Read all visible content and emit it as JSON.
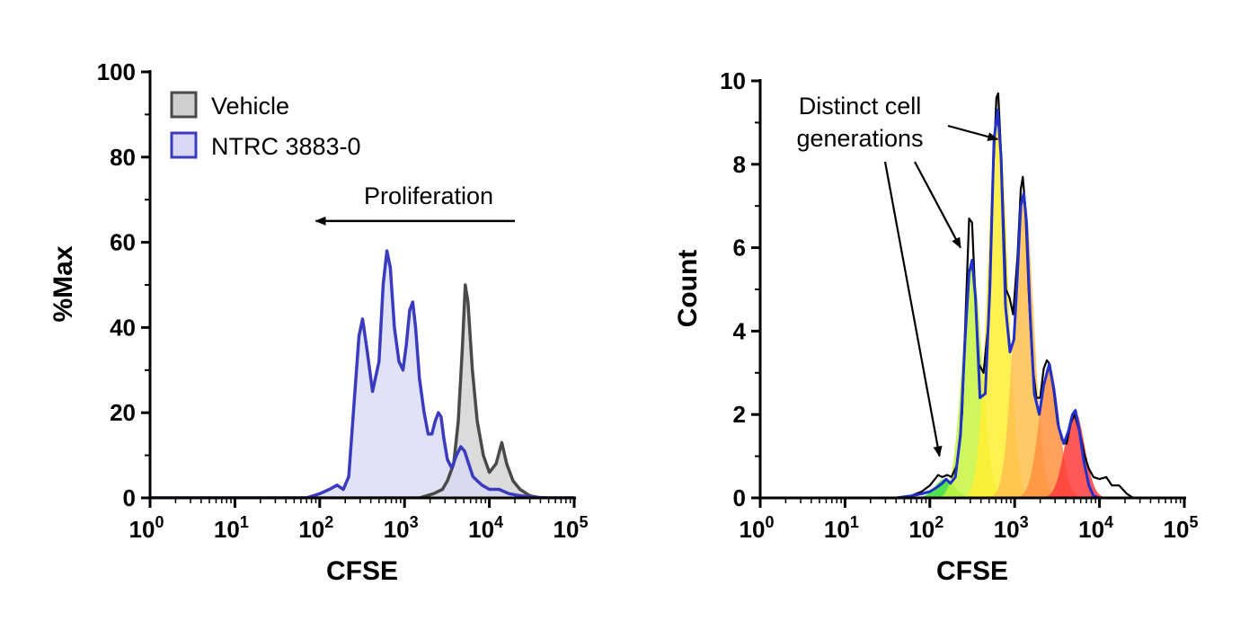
{
  "chart_data": [
    {
      "type": "area",
      "xscale": "log",
      "xlim": [
        1,
        100000
      ],
      "ylim": [
        0,
        100
      ],
      "xlabel": "CFSE",
      "ylabel": "%Max",
      "xticks": [
        {
          "base": "10",
          "exp": "0",
          "value": 1
        },
        {
          "base": "10",
          "exp": "1",
          "value": 10
        },
        {
          "base": "10",
          "exp": "2",
          "value": 100
        },
        {
          "base": "10",
          "exp": "3",
          "value": 1000
        },
        {
          "base": "10",
          "exp": "4",
          "value": 10000
        },
        {
          "base": "10",
          "exp": "5",
          "value": 100000
        }
      ],
      "yticks": [
        0,
        20,
        40,
        60,
        80,
        100
      ],
      "legend_position": "top-left",
      "annotation": {
        "text": "Proliferation",
        "arrow_from": 20000,
        "arrow_to": 90,
        "y": 65
      },
      "series": [
        {
          "name": "Vehicle",
          "stroke": "#4a4a4a",
          "fill": "#cfcfcf",
          "points": [
            [
              1,
              0
            ],
            [
              100,
              0
            ],
            [
              1500,
              0
            ],
            [
              2200,
              1
            ],
            [
              2800,
              2
            ],
            [
              3200,
              4
            ],
            [
              3800,
              8
            ],
            [
              4300,
              18
            ],
            [
              4800,
              35
            ],
            [
              5200,
              50
            ],
            [
              5600,
              46
            ],
            [
              6300,
              30
            ],
            [
              7200,
              18
            ],
            [
              8500,
              10
            ],
            [
              10000,
              6
            ],
            [
              12000,
              8
            ],
            [
              14000,
              13
            ],
            [
              16000,
              8
            ],
            [
              19000,
              4
            ],
            [
              23000,
              2
            ],
            [
              30000,
              0.5
            ],
            [
              40000,
              0
            ],
            [
              100000,
              0
            ]
          ]
        },
        {
          "name": "NTRC 3883-0",
          "stroke": "#3b3bbf",
          "fill": "#d8d8f4",
          "points": [
            [
              1,
              0
            ],
            [
              70,
              0
            ],
            [
              100,
              1
            ],
            [
              130,
              2
            ],
            [
              160,
              3
            ],
            [
              190,
              2
            ],
            [
              220,
              5
            ],
            [
              260,
              25
            ],
            [
              290,
              38
            ],
            [
              320,
              42
            ],
            [
              360,
              35
            ],
            [
              420,
              25
            ],
            [
              500,
              32
            ],
            [
              560,
              50
            ],
            [
              620,
              58
            ],
            [
              680,
              54
            ],
            [
              760,
              40
            ],
            [
              860,
              32
            ],
            [
              960,
              30
            ],
            [
              1050,
              36
            ],
            [
              1150,
              44
            ],
            [
              1250,
              46
            ],
            [
              1350,
              40
            ],
            [
              1500,
              28
            ],
            [
              1700,
              20
            ],
            [
              1900,
              15
            ],
            [
              2100,
              15
            ],
            [
              2300,
              18
            ],
            [
              2500,
              20
            ],
            [
              2700,
              19
            ],
            [
              2900,
              14
            ],
            [
              3200,
              9
            ],
            [
              3600,
              7
            ],
            [
              4100,
              10
            ],
            [
              4600,
              12
            ],
            [
              5100,
              11
            ],
            [
              5700,
              8
            ],
            [
              6400,
              5
            ],
            [
              7200,
              4
            ],
            [
              8200,
              3
            ],
            [
              10000,
              2
            ],
            [
              13000,
              2
            ],
            [
              17000,
              1
            ],
            [
              22000,
              0.6
            ],
            [
              30000,
              0.2
            ],
            [
              50000,
              0
            ],
            [
              100000,
              0
            ]
          ]
        }
      ]
    },
    {
      "type": "area",
      "xscale": "log",
      "xlim": [
        1,
        100000
      ],
      "ylim": [
        0,
        10
      ],
      "xlabel": "CFSE",
      "ylabel": "Count",
      "xticks": [
        {
          "base": "10",
          "exp": "0",
          "value": 1
        },
        {
          "base": "10",
          "exp": "1",
          "value": 10
        },
        {
          "base": "10",
          "exp": "2",
          "value": 100
        },
        {
          "base": "10",
          "exp": "3",
          "value": 1000
        },
        {
          "base": "10",
          "exp": "4",
          "value": 10000
        },
        {
          "base": "10",
          "exp": "5",
          "value": 100000
        }
      ],
      "yticks": [
        0,
        2,
        4,
        6,
        8,
        10
      ],
      "annotation": {
        "lines": [
          "Distinct cell",
          "generations"
        ],
        "arrow_targets": [
          [
            130,
            1.0
          ],
          [
            230,
            6.0
          ],
          [
            630,
            8.6
          ]
        ]
      },
      "generations": [
        {
          "center": 150,
          "height": 0.45,
          "color": "#33dd33"
        },
        {
          "center": 315,
          "height": 5.6,
          "color": "#c8f542"
        },
        {
          "center": 630,
          "height": 9.3,
          "color": "#ffee33"
        },
        {
          "center": 1280,
          "height": 7.3,
          "color": "#ffc04d"
        },
        {
          "center": 2550,
          "height": 3.2,
          "color": "#ff9040"
        },
        {
          "center": 5100,
          "height": 2.1,
          "color": "#ff3b3b"
        }
      ],
      "series": [
        {
          "stroke": "#000000",
          "points": [
            [
              1,
              0
            ],
            [
              40,
              0
            ],
            [
              60,
              0.05
            ],
            [
              80,
              0.15
            ],
            [
              100,
              0.3
            ],
            [
              115,
              0.45
            ],
            [
              125,
              0.55
            ],
            [
              140,
              0.5
            ],
            [
              160,
              0.55
            ],
            [
              180,
              0.5
            ],
            [
              210,
              0.8
            ],
            [
              240,
              2.0
            ],
            [
              265,
              4.5
            ],
            [
              290,
              6.7
            ],
            [
              315,
              6.6
            ],
            [
              340,
              5.0
            ],
            [
              380,
              3.2
            ],
            [
              430,
              3.0
            ],
            [
              490,
              4.2
            ],
            [
              550,
              7.5
            ],
            [
              610,
              9.6
            ],
            [
              640,
              9.7
            ],
            [
              700,
              8.0
            ],
            [
              790,
              5.0
            ],
            [
              870,
              4.8
            ],
            [
              960,
              4.4
            ],
            [
              1080,
              5.8
            ],
            [
              1180,
              7.4
            ],
            [
              1250,
              7.7
            ],
            [
              1330,
              7.0
            ],
            [
              1460,
              5.0
            ],
            [
              1620,
              3.2
            ],
            [
              1800,
              2.4
            ],
            [
              2000,
              2.4
            ],
            [
              2200,
              3.1
            ],
            [
              2400,
              3.3
            ],
            [
              2600,
              3.2
            ],
            [
              2900,
              2.5
            ],
            [
              3200,
              1.8
            ],
            [
              3600,
              1.4
            ],
            [
              4100,
              1.3
            ],
            [
              4600,
              1.8
            ],
            [
              5100,
              2.0
            ],
            [
              5600,
              1.7
            ],
            [
              6100,
              1.4
            ],
            [
              6700,
              1.0
            ],
            [
              7500,
              0.7
            ],
            [
              8500,
              0.5
            ],
            [
              10000,
              0.45
            ],
            [
              12000,
              0.5
            ],
            [
              14000,
              0.3
            ],
            [
              17000,
              0.3
            ],
            [
              21000,
              0.1
            ],
            [
              25000,
              0
            ],
            [
              100000,
              0
            ]
          ]
        },
        {
          "stroke": "#2030c8",
          "points": [
            [
              1,
              0
            ],
            [
              40,
              0
            ],
            [
              60,
              0.05
            ],
            [
              80,
              0.1
            ],
            [
              100,
              0.15
            ],
            [
              120,
              0.25
            ],
            [
              140,
              0.35
            ],
            [
              155,
              0.45
            ],
            [
              175,
              0.35
            ],
            [
              200,
              0.5
            ],
            [
              230,
              1.5
            ],
            [
              260,
              3.8
            ],
            [
              290,
              5.4
            ],
            [
              315,
              5.7
            ],
            [
              345,
              4.8
            ],
            [
              390,
              2.4
            ],
            [
              450,
              2.5
            ],
            [
              510,
              5.0
            ],
            [
              570,
              8.6
            ],
            [
              630,
              9.3
            ],
            [
              690,
              8.2
            ],
            [
              780,
              4.6
            ],
            [
              880,
              3.5
            ],
            [
              980,
              3.8
            ],
            [
              1080,
              5.4
            ],
            [
              1180,
              7.0
            ],
            [
              1280,
              7.3
            ],
            [
              1380,
              6.6
            ],
            [
              1520,
              4.4
            ],
            [
              1700,
              2.5
            ],
            [
              1950,
              2.0
            ],
            [
              2200,
              2.7
            ],
            [
              2550,
              3.2
            ],
            [
              2900,
              2.6
            ],
            [
              3300,
              1.7
            ],
            [
              3800,
              1.3
            ],
            [
              4300,
              1.6
            ],
            [
              4800,
              2.0
            ],
            [
              5200,
              2.1
            ],
            [
              5800,
              1.6
            ],
            [
              6500,
              0.9
            ],
            [
              7500,
              0.3
            ],
            [
              8500,
              0.05
            ],
            [
              10000,
              0
            ],
            [
              100000,
              0
            ]
          ]
        }
      ]
    }
  ]
}
